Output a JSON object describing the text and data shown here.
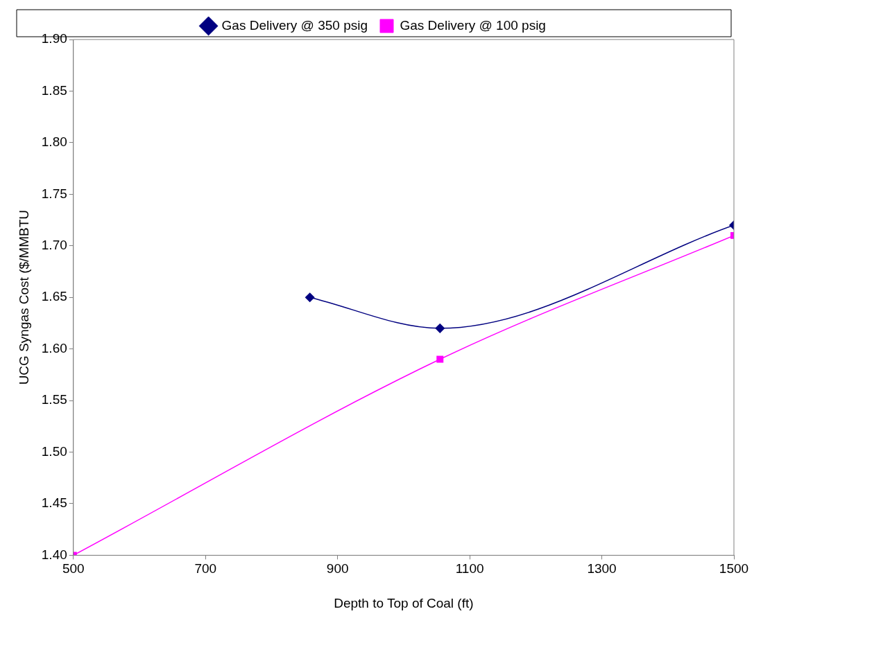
{
  "chart_data": {
    "type": "line",
    "xlabel": "Depth to Top of Coal (ft)",
    "ylabel": "UCG Syngas Cost ($/MMBTU",
    "series": [
      {
        "name": "Gas Delivery @ 350 psig",
        "color": "#000080",
        "marker": "diamond",
        "x": [
          858,
          1055,
          1500
        ],
        "values": [
          1.65,
          1.62,
          1.72
        ]
      },
      {
        "name": "Gas Delivery @ 100 psig",
        "color": "#ff00ff",
        "marker": "square",
        "x": [
          500,
          1055,
          1500
        ],
        "values": [
          1.4,
          1.59,
          1.71
        ]
      }
    ],
    "xlim": [
      500,
      1500
    ],
    "xticks": [
      500,
      700,
      900,
      1100,
      1300,
      1500
    ],
    "ylim": [
      1.4,
      1.9
    ],
    "yticks": [
      {
        "value": 1.4,
        "label": "1.40"
      },
      {
        "value": 1.45,
        "label": "1.45"
      },
      {
        "value": 1.5,
        "label": "1.50"
      },
      {
        "value": 1.55,
        "label": "1.55"
      },
      {
        "value": 1.6,
        "label": "1.60"
      },
      {
        "value": 1.65,
        "label": "1.65"
      },
      {
        "value": 1.7,
        "label": "1.70"
      },
      {
        "value": 1.75,
        "label": "1.75"
      },
      {
        "value": 1.8,
        "label": "1.80"
      },
      {
        "value": 1.85,
        "label": "1.85"
      },
      {
        "value": 1.9,
        "label": "1.90"
      }
    ],
    "grid": false,
    "legend": "top"
  }
}
